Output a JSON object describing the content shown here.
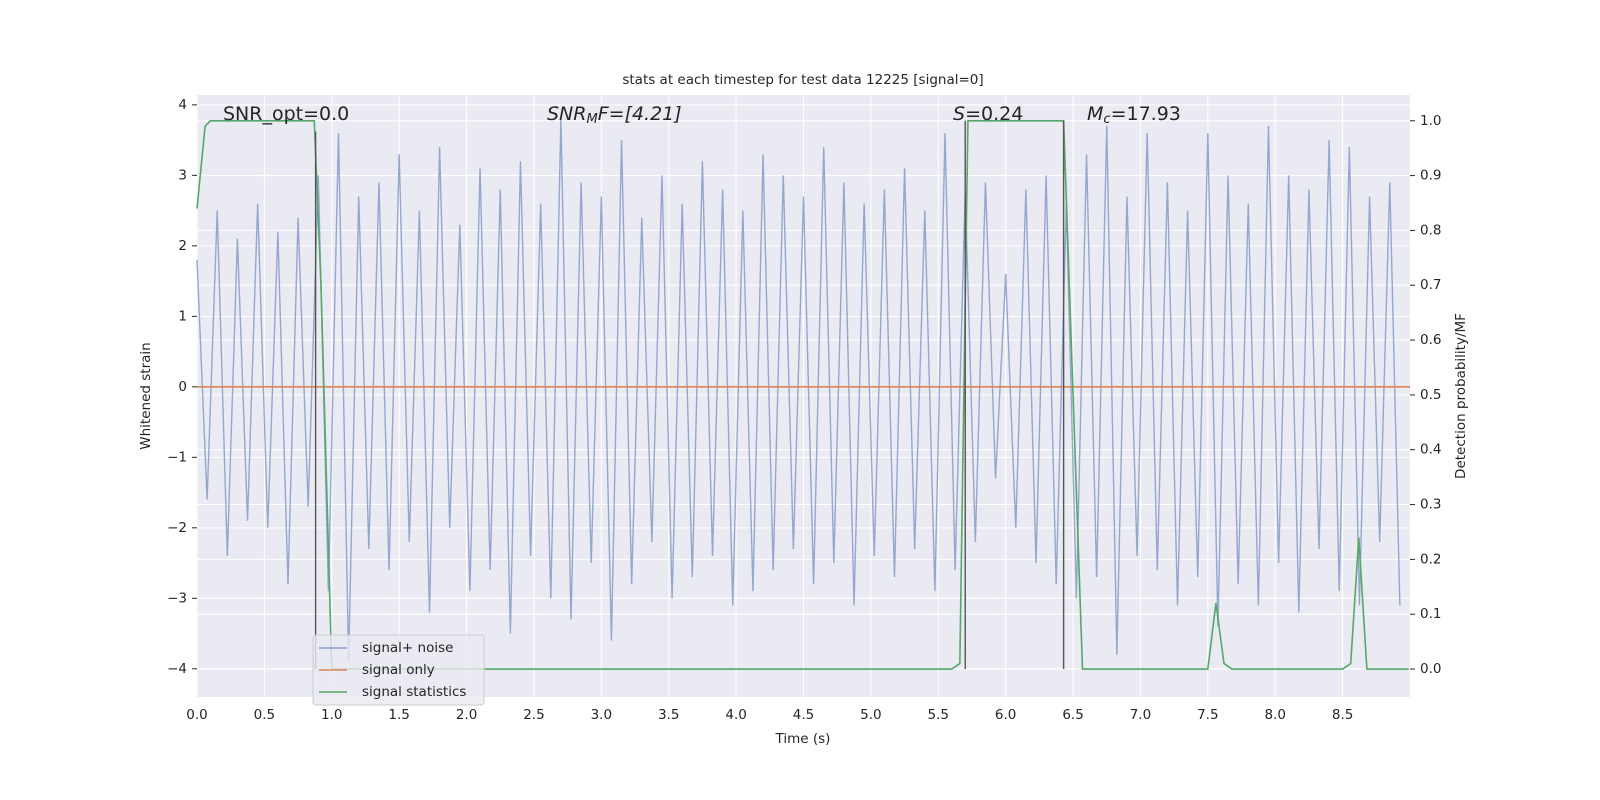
{
  "chart_data": {
    "type": "line",
    "title": "stats at each timestep for test data 12225 [signal=0]",
    "xlabel": "Time (s)",
    "ylabel": "Whitened strain",
    "y2label": "Detection probability/MF",
    "xlim": [
      0,
      9
    ],
    "ylim": [
      -4.4,
      4.14
    ],
    "y2lim": [
      -0.051,
      1.047
    ],
    "xticks": [
      {
        "value": 0,
        "label": "0.0"
      },
      0.5,
      {
        "value": 1,
        "label": "1.0"
      },
      1.5,
      {
        "value": 2,
        "label": "2.0"
      },
      2.5,
      {
        "value": 3,
        "label": "3.0"
      },
      3.5,
      {
        "value": 4,
        "label": "4.0"
      },
      4.5,
      {
        "value": 5,
        "label": "5.0"
      },
      5.5,
      {
        "value": 6,
        "label": "6.0"
      },
      6.5,
      {
        "value": 7,
        "label": "7.0"
      },
      7.5,
      {
        "value": 8,
        "label": "8.0"
      },
      8.5
    ],
    "yticks": [
      {
        "value": -4,
        "label": "−4"
      },
      {
        "value": -3,
        "label": "−3"
      },
      {
        "value": -2,
        "label": "−2"
      },
      {
        "value": -1,
        "label": "−1"
      },
      0,
      1,
      2,
      3,
      4
    ],
    "y2ticks": [
      {
        "value": 0,
        "label": "0.0"
      },
      0.1,
      0.2,
      0.3,
      0.4,
      0.5,
      0.6,
      0.7,
      0.8,
      0.9,
      {
        "value": 1,
        "label": "1.0"
      }
    ],
    "grid": true,
    "series": [
      {
        "name": "signal+ noise",
        "color": "#8c9fcb",
        "axis": "y",
        "x": [
          0,
          0.075,
          0.15,
          0.225,
          0.3,
          0.375,
          0.45,
          0.525,
          0.6,
          0.675,
          0.75,
          0.825,
          0.9,
          0.975,
          1.05,
          1.125,
          1.2,
          1.275,
          1.35,
          1.425,
          1.5,
          1.575,
          1.65,
          1.725,
          1.8,
          1.875,
          1.95,
          2.025,
          2.1,
          2.175,
          2.25,
          2.325,
          2.4,
          2.475,
          2.55,
          2.625,
          2.7,
          2.775,
          2.85,
          2.925,
          3,
          3.075,
          3.15,
          3.225,
          3.3,
          3.375,
          3.45,
          3.525,
          3.6,
          3.675,
          3.75,
          3.825,
          3.9,
          3.975,
          4.05,
          4.125,
          4.2,
          4.275,
          4.35,
          4.425,
          4.5,
          4.575,
          4.65,
          4.725,
          4.8,
          4.875,
          4.95,
          5.025,
          5.1,
          5.175,
          5.25,
          5.325,
          5.4,
          5.475,
          5.55,
          5.625,
          5.7,
          5.775,
          5.85,
          5.925,
          6,
          6.075,
          6.15,
          6.225,
          6.3,
          6.375,
          6.45,
          6.525,
          6.6,
          6.675,
          6.75,
          6.825,
          6.9,
          6.975,
          7.05,
          7.125,
          7.2,
          7.275,
          7.35,
          7.425,
          7.5,
          7.575,
          7.65,
          7.725,
          7.8,
          7.875,
          7.95,
          8.025,
          8.1,
          8.175,
          8.25,
          8.325,
          8.4,
          8.475,
          8.55,
          8.625,
          8.7,
          8.775,
          8.85,
          8.925
        ],
        "values": [
          1.8,
          -1.6,
          2.5,
          -2.4,
          2.1,
          -1.9,
          2.6,
          -2.0,
          2.2,
          -2.8,
          2.4,
          -1.7,
          3.0,
          -2.9,
          3.6,
          -3.9,
          2.7,
          -2.3,
          2.9,
          -2.6,
          3.3,
          -2.2,
          2.5,
          -3.2,
          3.4,
          -2.0,
          2.3,
          -2.9,
          3.1,
          -2.6,
          2.8,
          -3.5,
          3.2,
          -2.4,
          2.6,
          -3.0,
          3.8,
          -3.3,
          2.9,
          -2.5,
          2.7,
          -3.6,
          3.5,
          -2.8,
          2.4,
          -2.2,
          3.0,
          -3.0,
          2.6,
          -2.7,
          3.2,
          -2.4,
          2.8,
          -3.1,
          2.5,
          -2.9,
          3.3,
          -2.6,
          3.0,
          -2.3,
          2.7,
          -2.8,
          3.4,
          -2.5,
          2.9,
          -3.1,
          2.6,
          -2.4,
          2.8,
          -2.7,
          3.1,
          -2.3,
          2.5,
          -2.9,
          3.6,
          -2.6,
          2.8,
          -2.2,
          2.9,
          -1.3,
          1.6,
          -2.0,
          2.8,
          -2.5,
          3.0,
          -2.8,
          2.6,
          -3.0,
          3.3,
          -2.7,
          3.7,
          -3.8,
          2.7,
          -2.4,
          3.6,
          -2.6,
          2.9,
          -3.1,
          2.5,
          -2.7,
          3.6,
          -3.4,
          3.0,
          -2.8,
          2.6,
          -3.1,
          3.7,
          -2.5,
          3.0,
          -3.2,
          2.8,
          -2.3,
          3.5,
          -2.9,
          3.4,
          -3.1,
          2.7,
          -2.2,
          2.9,
          -3.1
        ]
      },
      {
        "name": "signal only",
        "color": "#dd8452",
        "axis": "y",
        "x": [
          0,
          9
        ],
        "values": [
          0,
          0
        ]
      },
      {
        "name": "signal statistics",
        "color": "#55a868",
        "axis": "y2",
        "x": [
          0,
          0.06,
          0.1,
          0.87,
          0.92,
          1.0,
          5.6,
          5.66,
          5.72,
          6.43,
          6.5,
          6.57,
          7.5,
          7.56,
          7.62,
          7.68,
          8.5,
          8.56,
          8.62,
          8.68,
          8.74,
          8.99
        ],
        "values": [
          0.84,
          0.99,
          1.0,
          1.0,
          0.7,
          0.0,
          0.0,
          0.01,
          1.0,
          1.0,
          0.5,
          0.0,
          0.0,
          0.12,
          0.01,
          0.0,
          0.0,
          0.01,
          0.24,
          0.0,
          0.0,
          0.0
        ]
      }
    ],
    "vlines": {
      "color": "#555555",
      "x": [
        0.88,
        5.7,
        6.43
      ],
      "ymin": 0,
      "ymax": [
        0.98,
        1.0,
        1.0
      ]
    },
    "annotations": [
      {
        "text": "SNR_opt=0.0"
      },
      {
        "base": "SNR",
        "sub": "M",
        "rest": "F=[4.21]"
      },
      {
        "base": "S",
        "rest": "=0.24"
      },
      {
        "base": "M",
        "sub": "c",
        "rest": "=17.93"
      }
    ]
  }
}
